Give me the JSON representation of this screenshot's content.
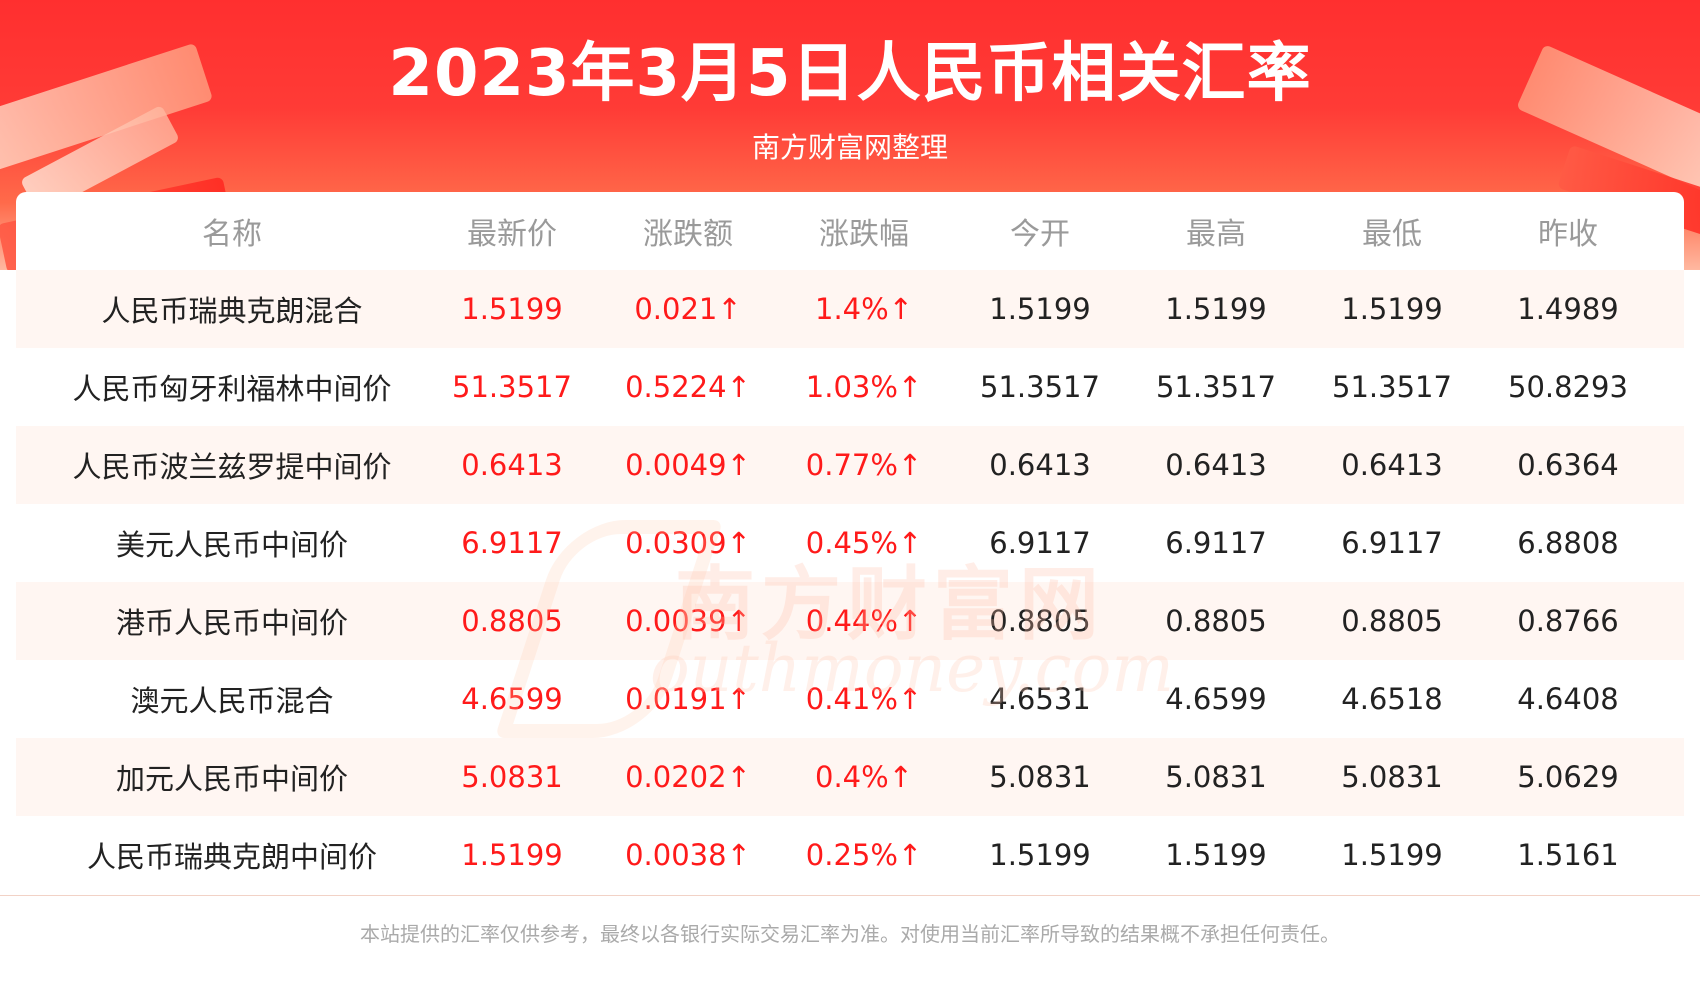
{
  "header": {
    "title": "2023年3月5日人民币相关汇率",
    "subtitle": "南方财富网整理"
  },
  "table": {
    "columns": [
      "名称",
      "最新价",
      "涨跌额",
      "涨跌幅",
      "今开",
      "最高",
      "最低",
      "昨收"
    ],
    "rows": [
      [
        "人民币瑞典克朗混合",
        "1.5199",
        "0.021↑",
        "1.4%↑",
        "1.5199",
        "1.5199",
        "1.5199",
        "1.4989"
      ],
      [
        "人民币匈牙利福林中间价",
        "51.3517",
        "0.5224↑",
        "1.03%↑",
        "51.3517",
        "51.3517",
        "51.3517",
        "50.8293"
      ],
      [
        "人民币波兰兹罗提中间价",
        "0.6413",
        "0.0049↑",
        "0.77%↑",
        "0.6413",
        "0.6413",
        "0.6413",
        "0.6364"
      ],
      [
        "美元人民币中间价",
        "6.9117",
        "0.0309↑",
        "0.45%↑",
        "6.9117",
        "6.9117",
        "6.9117",
        "6.8808"
      ],
      [
        "港币人民币中间价",
        "0.8805",
        "0.0039↑",
        "0.44%↑",
        "0.8805",
        "0.8805",
        "0.8805",
        "0.8766"
      ],
      [
        "澳元人民币混合",
        "4.6599",
        "0.0191↑",
        "0.41%↑",
        "4.6531",
        "4.6599",
        "4.6518",
        "4.6408"
      ],
      [
        "加元人民币中间价",
        "5.0831",
        "0.0202↑",
        "0.4%↑",
        "5.0831",
        "5.0831",
        "5.0831",
        "5.0629"
      ],
      [
        "人民币瑞典克朗中间价",
        "1.5199",
        "0.0038↑",
        "0.25%↑",
        "1.5199",
        "1.5199",
        "1.5199",
        "1.5161"
      ]
    ]
  },
  "watermark": {
    "cn": "南方财富网",
    "en": "outhmoney.com"
  },
  "footer": {
    "disclaimer": "本站提供的汇率仅供参考，最终以各银行实际交易汇率为准。对使用当前汇率所导致的结果概不承担任何责任。"
  },
  "colors": {
    "header_red": "#ff2f2f",
    "up_red": "#ff1a1a",
    "row_alt": "#fff6f2",
    "header_text_gray": "#9a9a9a"
  }
}
